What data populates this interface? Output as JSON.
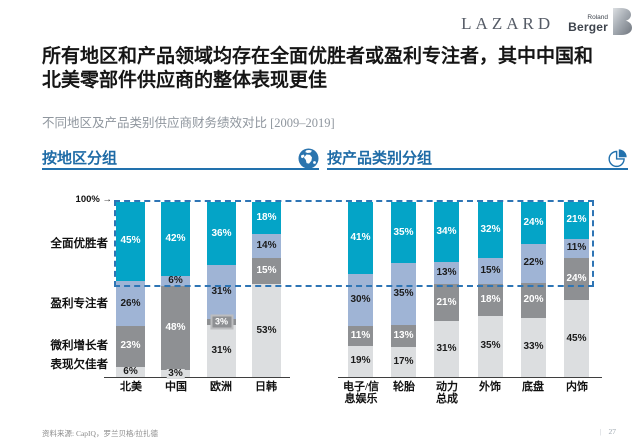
{
  "header": {
    "lazard": "LAZARD",
    "rb_top": "Roland",
    "rb_bottom": "Berger"
  },
  "title_lines": [
    "所有地区和产品领域均存在全面优胜者或盈利专注者，其中中国和",
    "北美零部件供应商的整体表现更佳"
  ],
  "subtitle": "不同地区及产品类别供应商财务绩效对比 [2009–2019]",
  "sections": {
    "left": "按地区分组",
    "right": "按产品类别分组"
  },
  "top_axis": {
    "value": "100%",
    "arrow": "→"
  },
  "colors": {
    "accent_blue": "#2271ad",
    "dashed_box_blue": "#2e75b5",
    "winner_teal": "#04a4c7",
    "profit_blue_gray": "#9fb4d5",
    "margin_dark_gray": "#8e9093",
    "underperform_light_gray": "#dcdee0"
  },
  "chart_data": [
    {
      "type": "bar",
      "stacked": true,
      "title": "按地区分组",
      "unit": "%",
      "ylim": [
        0,
        100
      ],
      "categories": [
        "北美",
        "中国",
        "欧洲",
        "日韩"
      ],
      "categories_display": [
        [
          "北美"
        ],
        [
          "中国"
        ],
        [
          "欧洲"
        ],
        [
          "日韩"
        ]
      ],
      "series": [
        {
          "name": "全面优胜者",
          "color": "#04a4c7",
          "label_color": "#ffffff",
          "values": [
            45,
            42,
            36,
            18
          ]
        },
        {
          "name": "盈利专注者",
          "color": "#9fb4d5",
          "label_color": "#1b1b1b",
          "values": [
            26,
            6,
            31,
            14
          ]
        },
        {
          "name": "微利增长者",
          "color": "#8e9093",
          "label_color": "#ffffff",
          "values": [
            23,
            48,
            3,
            15
          ]
        },
        {
          "name": "表现欠佳者",
          "color": "#dcdee0",
          "label_color": "#1b1b1b",
          "values": [
            6,
            3,
            31,
            53
          ]
        }
      ]
    },
    {
      "type": "bar",
      "stacked": true,
      "title": "按产品类别分组",
      "unit": "%",
      "ylim": [
        0,
        100
      ],
      "categories": [
        "电子/信息娱乐",
        "轮胎",
        "动力总成",
        "外饰",
        "底盘",
        "内饰"
      ],
      "categories_display": [
        [
          "电子/信",
          "息娱乐"
        ],
        [
          "轮胎"
        ],
        [
          "动力",
          "总成"
        ],
        [
          "外饰"
        ],
        [
          "底盘"
        ],
        [
          "内饰"
        ]
      ],
      "series": [
        {
          "name": "全面优胜者",
          "color": "#04a4c7",
          "label_color": "#ffffff",
          "values": [
            41,
            35,
            34,
            32,
            24,
            21
          ]
        },
        {
          "name": "盈利专注者",
          "color": "#9fb4d5",
          "label_color": "#1b1b1b",
          "values": [
            30,
            35,
            13,
            15,
            22,
            11
          ]
        },
        {
          "name": "微利增长者",
          "color": "#8e9093",
          "label_color": "#ffffff",
          "values": [
            11,
            13,
            21,
            18,
            20,
            24
          ]
        },
        {
          "name": "表现欠佳者",
          "color": "#dcdee0",
          "label_color": "#1b1b1b",
          "values": [
            19,
            17,
            31,
            35,
            33,
            45
          ]
        }
      ]
    }
  ],
  "footer": {
    "source": "资料来源: CapIQ，罗兰贝格/拉扎德",
    "separator": "|",
    "page": "27"
  }
}
